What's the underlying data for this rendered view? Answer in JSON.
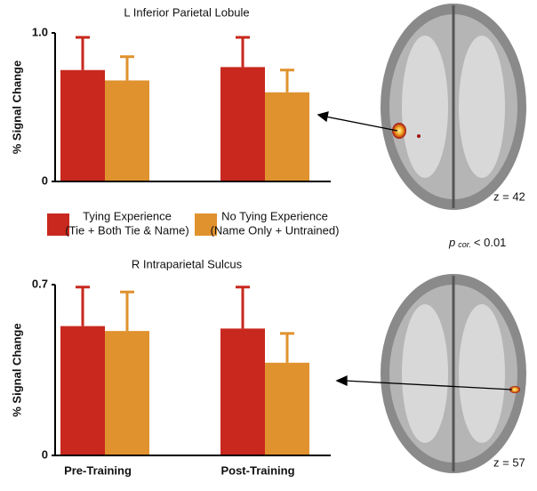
{
  "chart_data": [
    {
      "type": "bar",
      "title": "L Inferior Parietal Lobule",
      "ylabel": "% Signal Change",
      "categories": [
        null,
        null
      ],
      "ylim": [
        0,
        1
      ],
      "yticks": [
        0,
        {
          "value": 1,
          "label": "1.0"
        }
      ],
      "series": [
        {
          "name": "Tying Experience",
          "detail": "(Tie + Both Tie & Name)",
          "color": "#c8281e",
          "values": [
            0.75,
            0.77
          ],
          "errors": [
            0.22,
            0.2
          ]
        },
        {
          "name": "No Tying Experience",
          "detail": "(Name Only + Untrained)",
          "color": "#e0922e",
          "values": [
            0.68,
            0.6
          ],
          "errors": [
            0.16,
            0.15
          ]
        }
      ]
    },
    {
      "type": "bar",
      "title": "R Intraparietal Sulcus",
      "ylabel": "% Signal Change",
      "categories": [
        "Pre-Training",
        "Post-Training"
      ],
      "ylim": [
        0,
        0.7
      ],
      "yticks": [
        0,
        0.7
      ],
      "series": [
        {
          "color": "#c8281e",
          "values": [
            0.53,
            0.52
          ],
          "errors": [
            0.16,
            0.17
          ]
        },
        {
          "color": "#e0922e",
          "values": [
            0.51,
            0.38
          ],
          "errors": [
            0.16,
            0.12
          ]
        }
      ]
    }
  ],
  "annotations": {
    "p_label": "p",
    "p_subscript": "cor.",
    "p_text": "< 0.01",
    "z_top": "z = 42",
    "z_bottom": "z = 57"
  }
}
